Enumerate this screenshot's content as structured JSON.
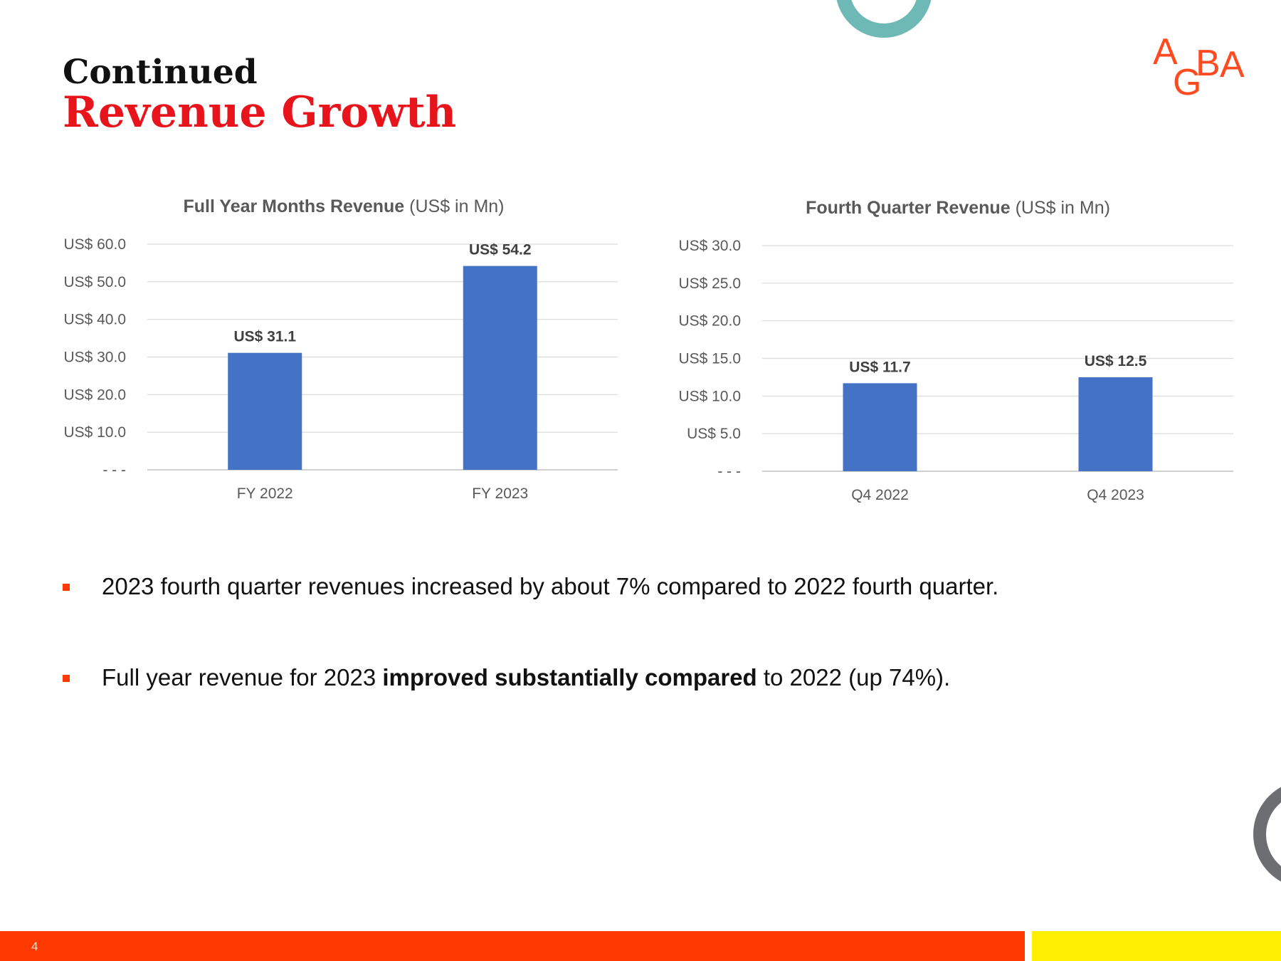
{
  "slide": {
    "title_line1": "Continued",
    "title_line2": "Revenue Growth",
    "page_number": "4",
    "logo_text": "AGBA"
  },
  "colors": {
    "title_red": "#e8141b",
    "bar_blue": "#4472c4",
    "teal_ring": "#6eb8b6",
    "gray_ring": "#6d6e71",
    "footer_orange": "#ff3a00",
    "footer_yellow": "#ffef00",
    "logo_orange": "#ff4b1f"
  },
  "bullets": [
    {
      "icon": "square-bullet-icon",
      "text": "2023 fourth quarter revenues increased by about 7% compared to 2022 fourth quarter."
    },
    {
      "icon": "square-bullet-icon",
      "text_before": "Full year revenue for 2023 ",
      "text_bold": "improved substantially compared",
      "text_after": " to 2022 (up 74%)."
    }
  ],
  "chart_data": [
    {
      "type": "bar",
      "title_bold": "Full Year Months Revenue",
      "title_rest": " (US$ in Mn)",
      "categories": [
        "FY 2022",
        "FY 2023"
      ],
      "values": [
        31.1,
        54.2
      ],
      "data_labels": [
        "US$ 31.1",
        "US$ 54.2"
      ],
      "ylim": [
        0,
        60
      ],
      "yticks": [
        0,
        10,
        20,
        30,
        40,
        50,
        60
      ],
      "ytick_labels": [
        "- - -",
        "US$ 10.0",
        "US$ 20.0",
        "US$ 30.0",
        "US$ 40.0",
        "US$ 50.0",
        "US$ 60.0"
      ],
      "grid": true
    },
    {
      "type": "bar",
      "title_bold": "Fourth Quarter Revenue",
      "title_rest": " (US$ in Mn)",
      "categories": [
        "Q4 2022",
        "Q4 2023"
      ],
      "values": [
        11.7,
        12.5
      ],
      "data_labels": [
        "US$ 11.7",
        "US$ 12.5"
      ],
      "ylim": [
        0,
        30
      ],
      "yticks": [
        0,
        5,
        10,
        15,
        20,
        25,
        30
      ],
      "ytick_labels": [
        "- - -",
        "US$ 5.0",
        "US$ 10.0",
        "US$ 15.0",
        "US$ 20.0",
        "US$ 25.0",
        "US$ 30.0"
      ],
      "grid": true
    }
  ]
}
